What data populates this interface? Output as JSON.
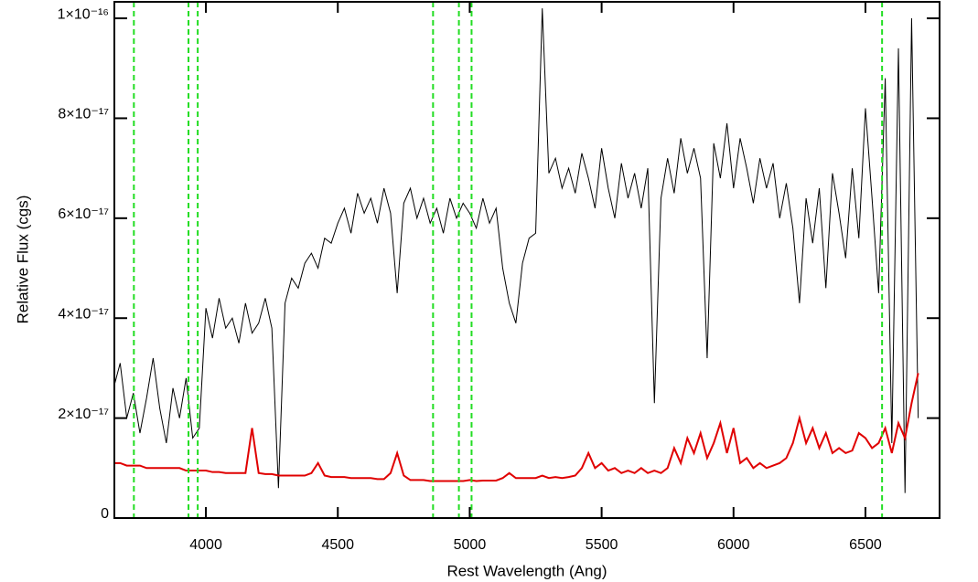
{
  "chart_data": {
    "type": "line",
    "x_label": "Rest Wavelength (Ang)",
    "y_label": "Relative Flux (cgs)",
    "xlim": [
      3653,
      6781
    ],
    "ylim": [
      0,
      1.033e-16
    ],
    "xticks": [
      4000,
      4500,
      5000,
      5500,
      6000,
      6500
    ],
    "yticks": [
      0,
      {
        "value": 2e-17,
        "label": "2×10⁻¹⁷"
      },
      {
        "value": 4e-17,
        "label": "4×10⁻¹⁷"
      },
      {
        "value": 6e-17,
        "label": "6×10⁻¹⁷"
      },
      {
        "value": 8e-17,
        "label": "8×10⁻¹⁷"
      },
      {
        "value": 1e-16,
        "label": "1×10⁻¹⁶"
      }
    ],
    "vlines": [
      3727,
      3934,
      3969,
      4861,
      4959,
      5007,
      6563
    ],
    "vline_color": "#22dd22",
    "x": [
      3650,
      3675,
      3700,
      3725,
      3750,
      3775,
      3800,
      3825,
      3850,
      3875,
      3900,
      3925,
      3950,
      3975,
      4000,
      4025,
      4050,
      4075,
      4100,
      4125,
      4150,
      4175,
      4200,
      4225,
      4250,
      4275,
      4300,
      4325,
      4350,
      4375,
      4400,
      4425,
      4450,
      4475,
      4500,
      4525,
      4550,
      4575,
      4600,
      4625,
      4650,
      4675,
      4700,
      4725,
      4750,
      4775,
      4800,
      4825,
      4850,
      4875,
      4900,
      4925,
      4950,
      4975,
      5000,
      5025,
      5050,
      5075,
      5100,
      5125,
      5150,
      5175,
      5200,
      5225,
      5250,
      5275,
      5300,
      5325,
      5350,
      5375,
      5400,
      5425,
      5450,
      5475,
      5500,
      5525,
      5550,
      5575,
      5600,
      5625,
      5650,
      5675,
      5700,
      5725,
      5750,
      5775,
      5800,
      5825,
      5850,
      5875,
      5900,
      5925,
      5950,
      5975,
      6000,
      6025,
      6050,
      6075,
      6100,
      6125,
      6150,
      6175,
      6200,
      6225,
      6250,
      6275,
      6300,
      6325,
      6350,
      6375,
      6400,
      6425,
      6450,
      6475,
      6500,
      6525,
      6550,
      6575,
      6600,
      6625,
      6650,
      6675,
      6700
    ],
    "series": [
      {
        "color": "#000000",
        "values": [
          2.6e-17,
          3.1e-17,
          2e-17,
          2.5e-17,
          1.7e-17,
          2.4e-17,
          3.2e-17,
          2.2e-17,
          1.5e-17,
          2.6e-17,
          2e-17,
          2.8e-17,
          1.6e-17,
          1.8e-17,
          4.2e-17,
          3.6e-17,
          4.4e-17,
          3.8e-17,
          4e-17,
          3.5e-17,
          4.3e-17,
          3.7e-17,
          3.9e-17,
          4.4e-17,
          3.8e-17,
          6e-18,
          4.3e-17,
          4.8e-17,
          4.6e-17,
          5.1e-17,
          5.3e-17,
          5e-17,
          5.6e-17,
          5.5e-17,
          5.9e-17,
          6.2e-17,
          5.7e-17,
          6.5e-17,
          6.1e-17,
          6.4e-17,
          5.9e-17,
          6.6e-17,
          6.1e-17,
          4.5e-17,
          6.3e-17,
          6.6e-17,
          6e-17,
          6.4e-17,
          5.9e-17,
          6.2e-17,
          5.7e-17,
          6.4e-17,
          6e-17,
          6.3e-17,
          6.1e-17,
          5.8e-17,
          6.4e-17,
          5.9e-17,
          6.2e-17,
          5e-17,
          4.3e-17,
          3.9e-17,
          5.1e-17,
          5.6e-17,
          5.7e-17,
          1.02e-16,
          6.9e-17,
          7.2e-17,
          6.6e-17,
          7e-17,
          6.5e-17,
          7.3e-17,
          6.8e-17,
          6.2e-17,
          7.4e-17,
          6.6e-17,
          6e-17,
          7.1e-17,
          6.4e-17,
          6.9e-17,
          6.2e-17,
          7e-17,
          2.3e-17,
          6.4e-17,
          7.2e-17,
          6.5e-17,
          7.6e-17,
          6.9e-17,
          7.4e-17,
          6.8e-17,
          3.2e-17,
          7.5e-17,
          6.8e-17,
          7.9e-17,
          6.6e-17,
          7.6e-17,
          7e-17,
          6.3e-17,
          7.2e-17,
          6.6e-17,
          7.1e-17,
          6e-17,
          6.7e-17,
          5.8e-17,
          4.3e-17,
          6.4e-17,
          5.5e-17,
          6.6e-17,
          4.6e-17,
          6.9e-17,
          6.1e-17,
          5.2e-17,
          7e-17,
          5.6e-17,
          8.2e-17,
          6.4e-17,
          4.5e-17,
          8.8e-17,
          1.5e-17,
          9.4e-17,
          5e-18,
          1e-16,
          2e-17
        ]
      },
      {
        "color": "#e00000",
        "values": [
          1.1e-17,
          1.1e-17,
          1.05e-17,
          1.05e-17,
          1.05e-17,
          1e-17,
          1e-17,
          1e-17,
          1e-17,
          1e-17,
          1e-17,
          9.5e-18,
          9.5e-18,
          9.5e-18,
          9.5e-18,
          9.2e-18,
          9.2e-18,
          9e-18,
          9e-18,
          9e-18,
          9e-18,
          1.8e-17,
          9e-18,
          8.8e-18,
          8.8e-18,
          8.5e-18,
          8.5e-18,
          8.5e-18,
          8.5e-18,
          8.5e-18,
          9e-18,
          1.1e-17,
          8.5e-18,
          8.2e-18,
          8.2e-18,
          8.2e-18,
          8e-18,
          8e-18,
          8e-18,
          8e-18,
          7.8e-18,
          7.8e-18,
          9e-18,
          1.3e-17,
          8.5e-18,
          7.6e-18,
          7.6e-18,
          7.6e-18,
          7.4e-18,
          7.4e-18,
          7.4e-18,
          7.4e-18,
          7.4e-18,
          7.4e-18,
          7.6e-18,
          7.4e-18,
          7.5e-18,
          7.5e-18,
          7.5e-18,
          8e-18,
          9e-18,
          8e-18,
          8e-18,
          8e-18,
          8e-18,
          8.5e-18,
          8e-18,
          8.2e-18,
          8e-18,
          8.2e-18,
          8.5e-18,
          1e-17,
          1.3e-17,
          1e-17,
          1.1e-17,
          9.5e-18,
          1e-17,
          9e-18,
          9.5e-18,
          9e-18,
          1e-17,
          9e-18,
          9.5e-18,
          9e-18,
          1e-17,
          1.4e-17,
          1.1e-17,
          1.6e-17,
          1.3e-17,
          1.7e-17,
          1.2e-17,
          1.5e-17,
          1.9e-17,
          1.3e-17,
          1.8e-17,
          1.1e-17,
          1.2e-17,
          1e-17,
          1.1e-17,
          1e-17,
          1.05e-17,
          1.1e-17,
          1.2e-17,
          1.5e-17,
          2e-17,
          1.5e-17,
          1.8e-17,
          1.4e-17,
          1.7e-17,
          1.3e-17,
          1.4e-17,
          1.3e-17,
          1.35e-17,
          1.7e-17,
          1.6e-17,
          1.4e-17,
          1.5e-17,
          1.8e-17,
          1.3e-17,
          1.9e-17,
          1.6e-17,
          2.3e-17,
          2.9e-17
        ]
      }
    ]
  }
}
